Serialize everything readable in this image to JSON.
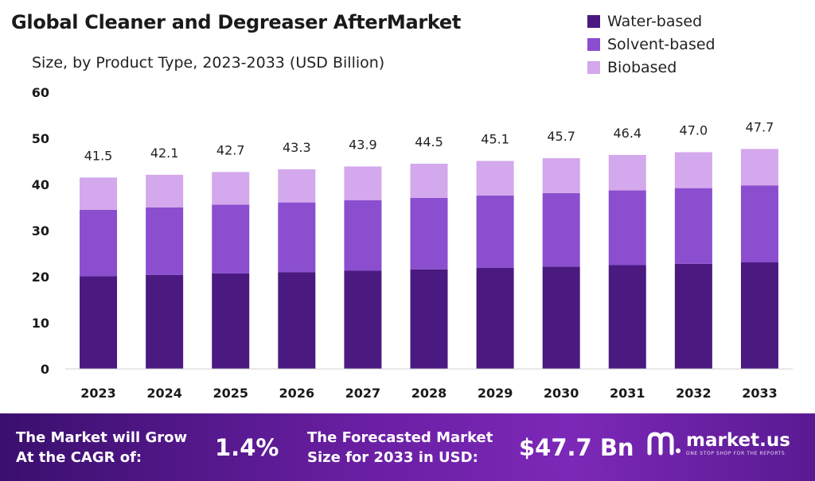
{
  "chart_data": {
    "type": "bar",
    "stacked": true,
    "title": "Global Cleaner and Degreaser AfterMarket",
    "subtitle": "Size, by Product Type, 2023-2033 (USD Billion)",
    "categories": [
      "2023",
      "2024",
      "2025",
      "2026",
      "2027",
      "2028",
      "2029",
      "2030",
      "2031",
      "2032",
      "2033"
    ],
    "series": [
      {
        "name": "Water-based",
        "color": "#4a1a80",
        "values": [
          20.1,
          20.4,
          20.7,
          21.0,
          21.3,
          21.6,
          21.9,
          22.2,
          22.5,
          22.8,
          23.1
        ]
      },
      {
        "name": "Solvent-based",
        "color": "#8a4ecf",
        "values": [
          14.4,
          14.6,
          14.9,
          15.1,
          15.3,
          15.5,
          15.7,
          15.9,
          16.2,
          16.4,
          16.7
        ]
      },
      {
        "name": "Biobased",
        "color": "#d4a8ec",
        "values": [
          7.0,
          7.1,
          7.1,
          7.2,
          7.3,
          7.4,
          7.5,
          7.6,
          7.7,
          7.8,
          7.9
        ]
      }
    ],
    "totals": [
      "41.5",
      "42.1",
      "42.7",
      "43.3",
      "43.9",
      "44.5",
      "45.1",
      "45.7",
      "46.4",
      "47.0",
      "47.7"
    ],
    "ylim": [
      0,
      60
    ],
    "yticks": [
      "0",
      "10",
      "20",
      "30",
      "40",
      "50",
      "60"
    ],
    "legend_position": "top-right",
    "grid": false
  },
  "footer": {
    "cagr_line1": "The Market will Grow",
    "cagr_line2": "At the CAGR of:",
    "cagr_value": "1.4%",
    "forecast_line1": "The Forecasted Market",
    "forecast_line2": "Size for 2033 in USD:",
    "forecast_value": "$47.7 Bn"
  },
  "brand": {
    "name": "market.us",
    "tagline": "ONE STOP SHOP FOR THE REPORTS"
  }
}
